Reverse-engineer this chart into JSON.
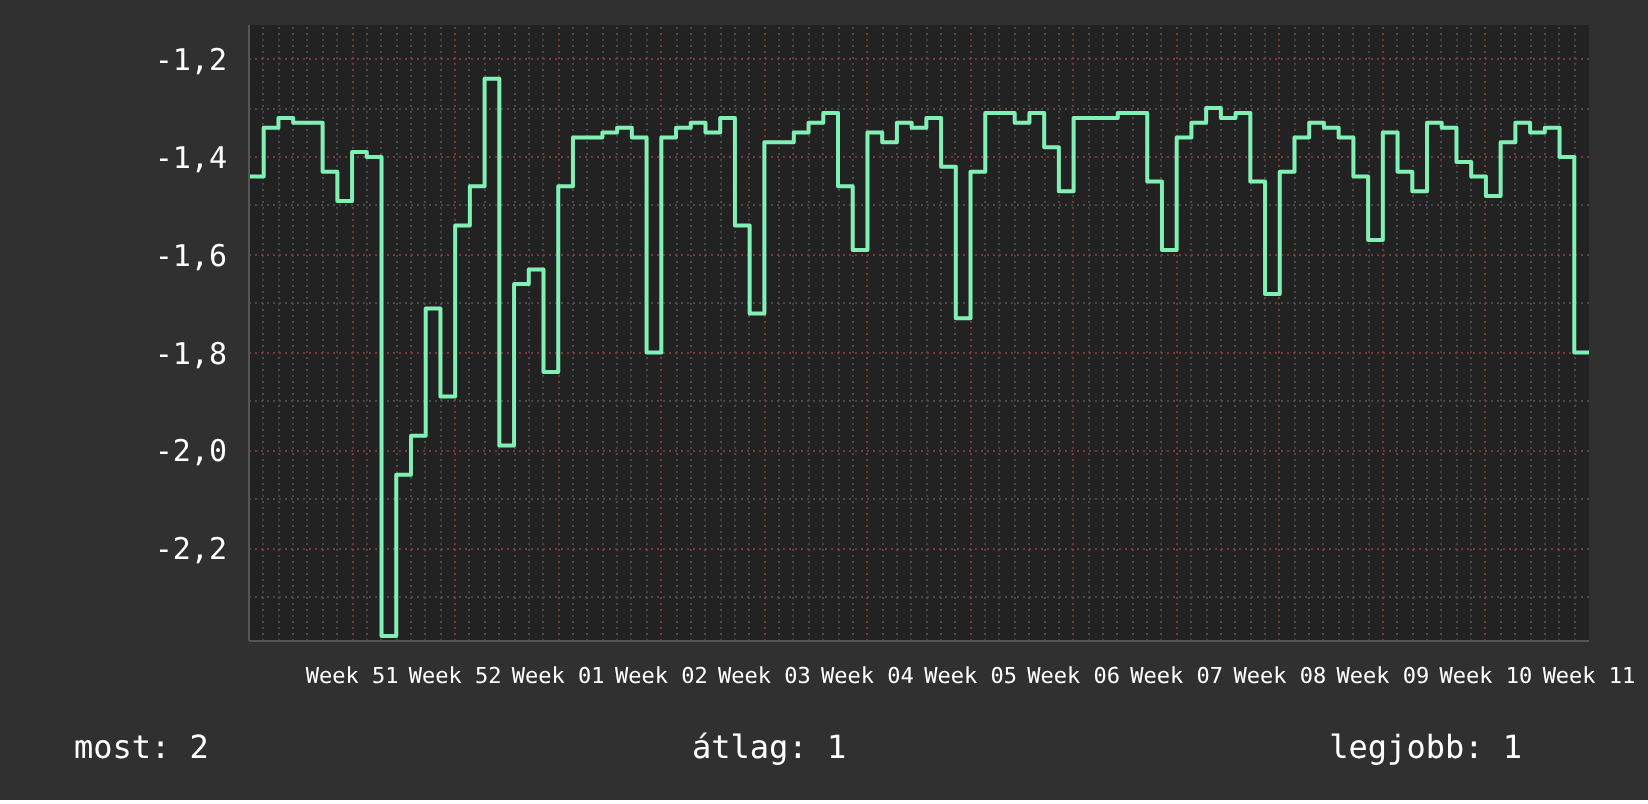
{
  "chart_data": {
    "type": "step",
    "color": "#80f0b4",
    "grid": true,
    "categories": [
      null,
      null,
      null,
      null,
      null,
      null,
      null,
      "Week 51",
      null,
      null,
      null,
      null,
      null,
      null,
      "Week 52",
      null,
      null,
      null,
      null,
      null,
      null,
      "Week 01",
      null,
      null,
      null,
      null,
      null,
      null,
      "Week 02",
      null,
      null,
      null,
      null,
      null,
      null,
      "Week 03",
      null,
      null,
      null,
      null,
      null,
      null,
      "Week 04",
      null,
      null,
      null,
      null,
      null,
      null,
      "Week 05",
      null,
      null,
      null,
      null,
      null,
      null,
      "Week 06",
      null,
      null,
      null,
      null,
      null,
      null,
      "Week 07",
      null,
      null,
      null,
      null,
      null,
      null,
      "Week 08",
      null,
      null,
      null,
      null,
      null,
      null,
      "Week 09",
      null,
      null,
      null,
      null,
      null,
      null,
      "Week 10",
      null,
      null,
      null,
      null,
      null,
      null,
      "Week 11"
    ],
    "values": [
      -1.44,
      -1.34,
      -1.32,
      -1.33,
      -1.33,
      -1.43,
      -1.49,
      -1.39,
      -1.4,
      -2.38,
      -2.05,
      -1.97,
      -1.71,
      -1.89,
      -1.54,
      -1.46,
      -1.24,
      -1.99,
      -1.66,
      -1.63,
      -1.84,
      -1.46,
      -1.36,
      -1.36,
      -1.35,
      -1.34,
      -1.36,
      -1.8,
      -1.36,
      -1.34,
      -1.33,
      -1.35,
      -1.32,
      -1.54,
      -1.72,
      -1.37,
      -1.37,
      -1.35,
      -1.33,
      -1.31,
      -1.46,
      -1.59,
      -1.35,
      -1.37,
      -1.33,
      -1.34,
      -1.32,
      -1.42,
      -1.73,
      -1.43,
      -1.31,
      -1.31,
      -1.33,
      -1.31,
      -1.38,
      -1.47,
      -1.32,
      -1.32,
      -1.32,
      -1.31,
      -1.31,
      -1.45,
      -1.59,
      -1.36,
      -1.33,
      -1.3,
      -1.32,
      -1.31,
      -1.45,
      -1.68,
      -1.43,
      -1.36,
      -1.33,
      -1.34,
      -1.36,
      -1.44,
      -1.57,
      -1.35,
      -1.43,
      -1.47,
      -1.33,
      -1.34,
      -1.41,
      -1.44,
      -1.48,
      -1.37,
      -1.33,
      -1.35,
      -1.34,
      -1.4,
      -1.8,
      -1.8
    ],
    "ylim": [
      -2.39,
      -1.13
    ],
    "yticks": [
      {
        "value": -2.2,
        "label": "-2,2"
      },
      {
        "value": -2.0,
        "label": "-2,0"
      },
      {
        "value": -1.8,
        "label": "-1,8"
      },
      {
        "value": -1.6,
        "label": "-1,6"
      },
      {
        "value": -1.4,
        "label": "-1,4"
      },
      {
        "value": -1.2,
        "label": "-1,2"
      }
    ],
    "annotations": [
      "most: 2",
      "átlag: 1",
      "legjobb: 1"
    ]
  }
}
